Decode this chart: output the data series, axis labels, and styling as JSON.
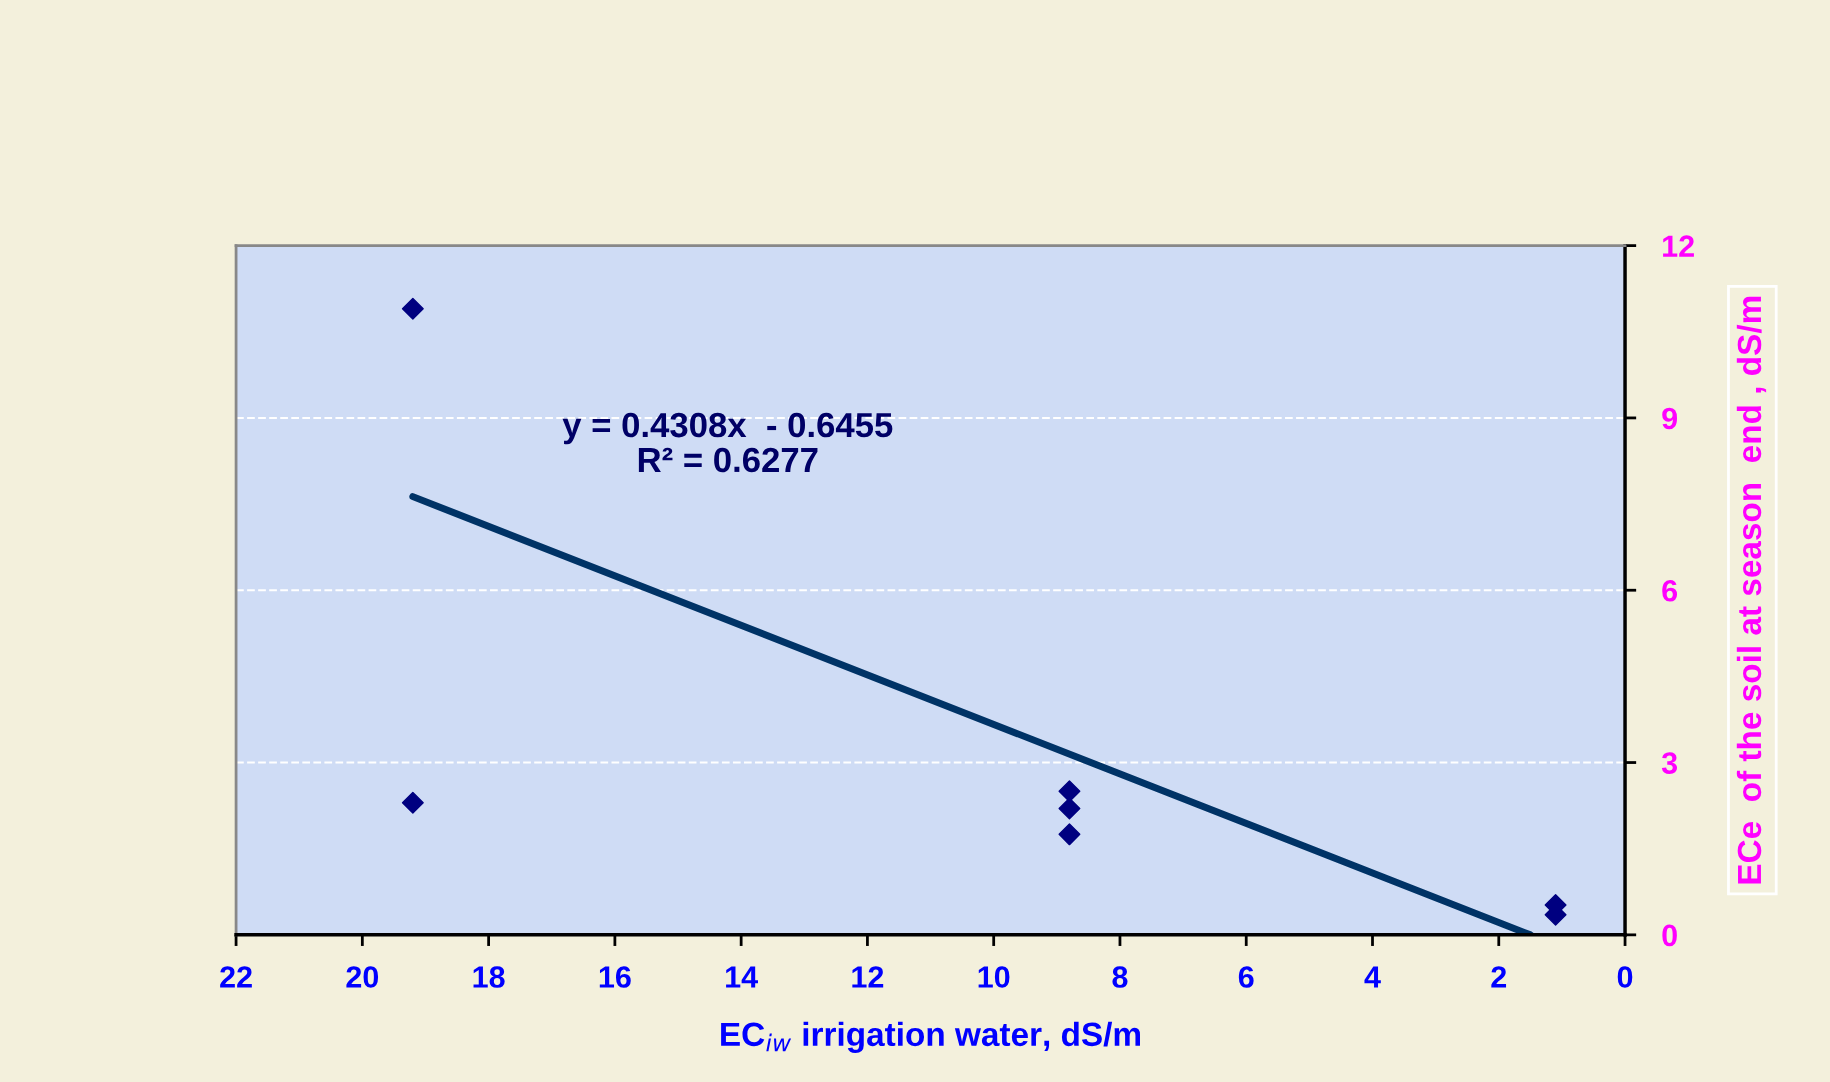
{
  "chart_data": {
    "type": "scatter",
    "xlabel": "EC$_{iw}$ irrigation water, dS/m",
    "ylabel": "ECe  of the soil at season  end , dS/m",
    "xlim": [
      22,
      0
    ],
    "xticks": [
      22,
      20,
      18,
      16,
      14,
      12,
      10,
      8,
      6,
      4,
      2,
      0
    ],
    "ylim": [
      0,
      12
    ],
    "yticks": [
      0,
      3,
      6,
      9,
      12
    ],
    "grid": "y",
    "series": [
      {
        "marker": "diamond",
        "color": "#000080",
        "x": [
          19.2,
          19.2,
          8.8,
          8.8,
          8.8,
          1.1,
          1.1
        ],
        "values": [
          10.9,
          2.3,
          2.5,
          2.2,
          1.75,
          0.52,
          0.35
        ]
      },
      {
        "type": "line",
        "color": "#003366",
        "x": [
          19.2,
          1.5
        ],
        "values": [
          7.63,
          0.0
        ]
      }
    ],
    "annotations": [
      "y = 0.4308x  - 0.6455\nR² = 0.6277"
    ]
  }
}
